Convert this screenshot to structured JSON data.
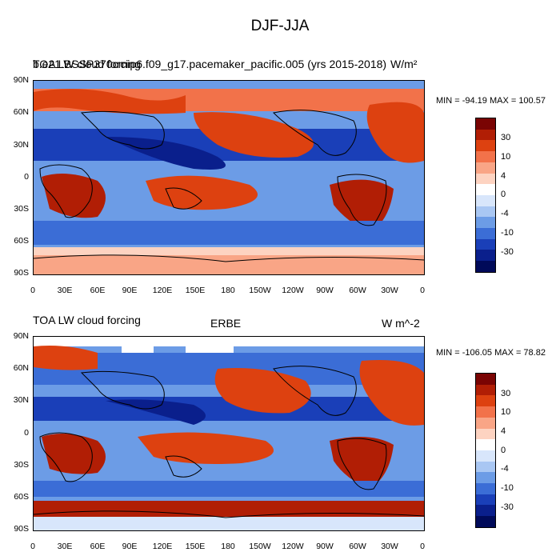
{
  "main_title": "DJF-JJA",
  "panel1": {
    "left_title_a": "TOA LW cloud forcing",
    "left_title_b": "b.e21.BSSP370cmip6.f09_g17.pacemaker_pacific.005 (yrs 2015-2018)",
    "units": "W/m²",
    "minmax": "MIN = -94.19 MAX = 100.57"
  },
  "panel2": {
    "left_title": "TOA LW cloud forcing",
    "center_title": "ERBE",
    "units": "W m^-2",
    "minmax": "MIN = -106.05 MAX =  78.82"
  },
  "lat_labels": [
    "90N",
    "60N",
    "30N",
    "0",
    "30S",
    "60S",
    "90S"
  ],
  "lon_labels": [
    "0",
    "30E",
    "60E",
    "90E",
    "120E",
    "150E",
    "180",
    "150W",
    "120W",
    "90W",
    "60W",
    "30W",
    "0"
  ],
  "colorbar": {
    "labels": [
      "30",
      "10",
      "4",
      "0",
      "-4",
      "-10",
      "-30"
    ],
    "colors": [
      "#7a0403",
      "#b11e05",
      "#dd4110",
      "#f2724a",
      "#f9a586",
      "#fdd3c1",
      "#ffffff",
      "#d8e6fb",
      "#a9c7f3",
      "#6c9ce6",
      "#3b6dd6",
      "#1a3fb8",
      "#0a1f8c",
      "#000a59"
    ]
  }
}
